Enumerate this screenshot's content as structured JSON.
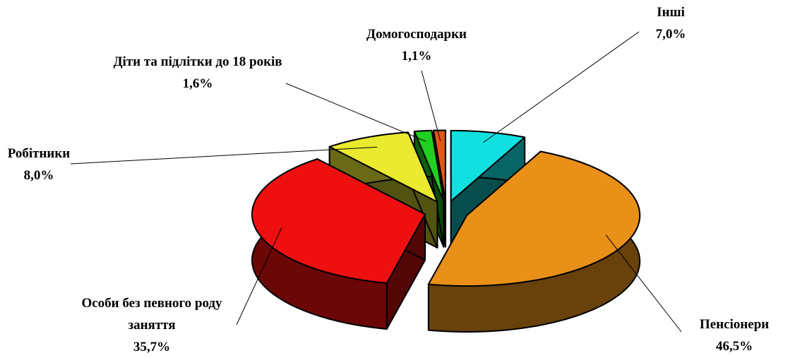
{
  "chart_data": {
    "type": "pie3d",
    "categories": [
      "Інші",
      "Пенсіонери",
      "Особи без певного роду заняття",
      "Робітники",
      "Діти та підлітки до 18 років",
      "Домогосподарки"
    ],
    "values": [
      7.0,
      46.5,
      35.7,
      8.0,
      1.6,
      1.1
    ],
    "value_labels": [
      "7,0%",
      "46,5%",
      "35,7%",
      "8,0%",
      "1,6%",
      "1,1%"
    ],
    "colors": [
      "#10e0e0",
      "#e89018",
      "#ee1010",
      "#eaea30",
      "#20d020",
      "#e05818"
    ]
  }
}
